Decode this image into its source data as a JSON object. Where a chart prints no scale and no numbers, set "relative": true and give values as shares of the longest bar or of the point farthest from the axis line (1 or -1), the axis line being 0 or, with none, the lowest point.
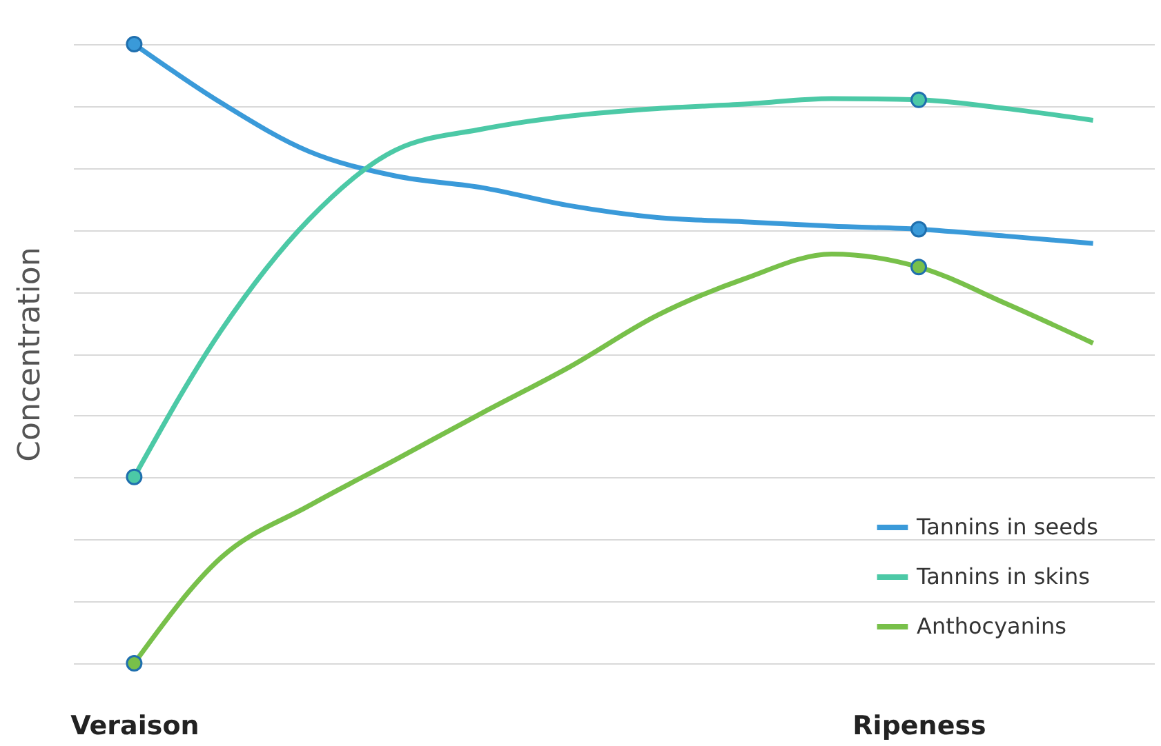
{
  "chart_data": {
    "type": "line",
    "relative": true,
    "ylabel": "Concentration",
    "categories": [
      "Veraison",
      null,
      null,
      null,
      null,
      null,
      null,
      null,
      null,
      "Ripeness",
      null,
      null
    ],
    "series": [
      {
        "name": "Tannins in seeds",
        "color": "#3a9ad9",
        "values": [
          1,
          0.905,
          0.827,
          0.787,
          0.768,
          0.739,
          0.72,
          0.713,
          0.706,
          0.701,
          0.69,
          0.678
        ]
      },
      {
        "name": "Tannins in skins",
        "color": "#4cc9a6",
        "values": [
          0.301,
          0.538,
          0.716,
          0.829,
          0.863,
          0.884,
          0.896,
          0.903,
          0.912,
          0.91,
          0.896,
          0.877
        ]
      },
      {
        "name": "Anthocyanins",
        "color": "#78c04a",
        "values": [
          0,
          0.171,
          0.254,
          0.329,
          0.405,
          0.479,
          0.562,
          0.621,
          0.661,
          0.64,
          0.581,
          0.517
        ]
      }
    ],
    "grid": "y",
    "legend": "bottom right"
  }
}
